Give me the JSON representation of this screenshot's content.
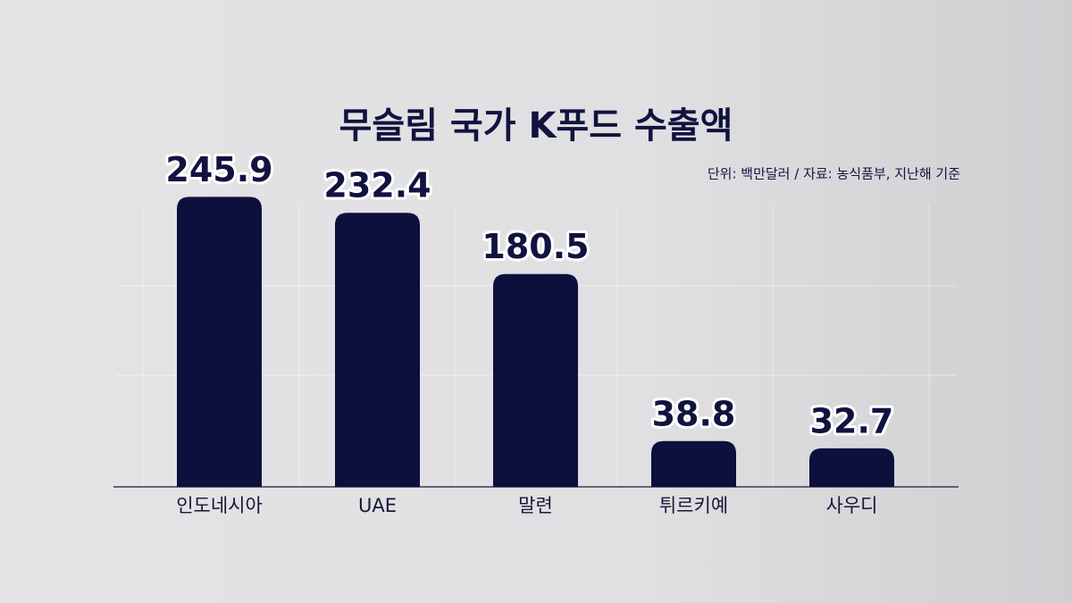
{
  "chart_data": {
    "type": "bar",
    "title": "무슬림 국가 K푸드 수출액",
    "subtitle": "단위: 백만달러 / 자료: 농식품부, 지난해 기준",
    "categories": [
      "인도네시아",
      "UAE",
      "말련",
      "튀르키예",
      "사우디"
    ],
    "values": [
      245.9,
      232.4,
      180.5,
      38.8,
      32.7
    ],
    "color": "#0d0f3d",
    "ylim": [
      0,
      250
    ]
  }
}
